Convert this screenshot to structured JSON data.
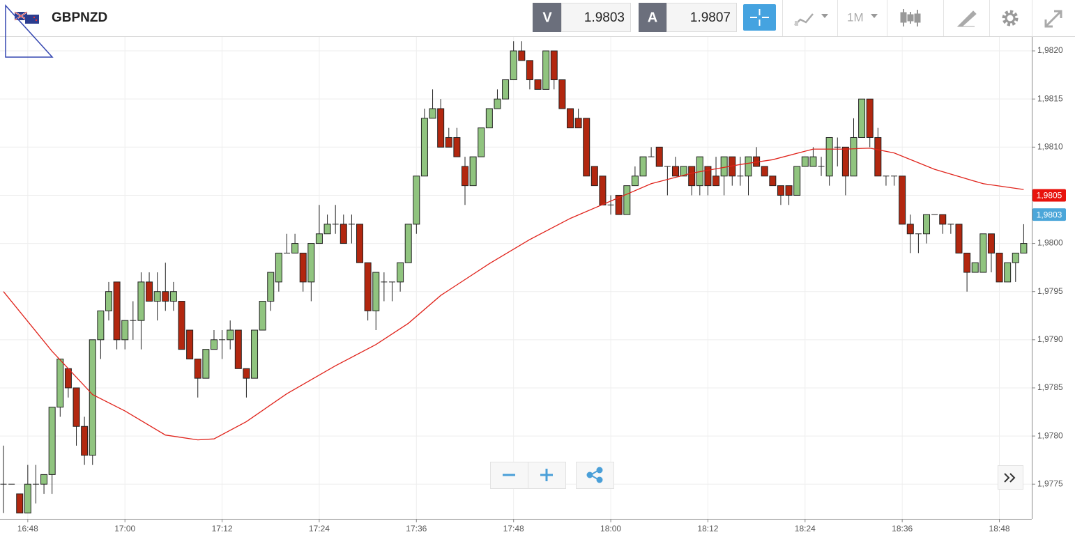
{
  "toolbar": {
    "symbol": "GBPNZD",
    "bid_label": "V",
    "bid": "1.9803",
    "ask_label": "A",
    "ask": "1.9807",
    "timeframe": "1M"
  },
  "chart_data": {
    "type": "candlestick",
    "x": [
      "16:45",
      "16:46",
      "16:47",
      "16:48",
      "16:49",
      "16:50",
      "16:51",
      "16:52",
      "16:53",
      "16:54",
      "16:55",
      "16:56",
      "16:57",
      "16:58",
      "16:59",
      "17:00",
      "17:01",
      "17:02",
      "17:03",
      "17:04",
      "17:05",
      "17:06",
      "17:07",
      "17:08",
      "17:09",
      "17:10",
      "17:11",
      "17:12",
      "17:13",
      "17:14",
      "17:15",
      "17:16",
      "17:17",
      "17:18",
      "17:19",
      "17:20",
      "17:21",
      "17:22",
      "17:23",
      "17:24",
      "17:25",
      "17:26",
      "17:27",
      "17:28",
      "17:29",
      "17:30",
      "17:31",
      "17:32",
      "17:33",
      "17:34",
      "17:35",
      "17:36",
      "17:37",
      "17:38",
      "17:39",
      "17:40",
      "17:41",
      "17:42",
      "17:43",
      "17:44",
      "17:45",
      "17:46",
      "17:47",
      "17:48",
      "17:49",
      "17:50",
      "17:51",
      "17:52",
      "17:53",
      "17:54",
      "17:55",
      "17:56",
      "17:57",
      "17:58",
      "17:59",
      "18:00",
      "18:01",
      "18:02",
      "18:03",
      "18:04",
      "18:05",
      "18:06",
      "18:07",
      "18:08",
      "18:09",
      "18:10",
      "18:11",
      "18:12",
      "18:13",
      "18:14",
      "18:15",
      "18:16",
      "18:17",
      "18:18",
      "18:19",
      "18:20",
      "18:21",
      "18:22",
      "18:23",
      "18:24",
      "18:25",
      "18:26",
      "18:27",
      "18:28",
      "18:29",
      "18:30",
      "18:31",
      "18:32",
      "18:33",
      "18:34",
      "18:35",
      "18:36",
      "18:37",
      "18:38",
      "18:39",
      "18:40",
      "18:41",
      "18:42",
      "18:43",
      "18:44",
      "18:45",
      "18:46",
      "18:47",
      "18:48",
      "18:49",
      "18:50",
      "18:51"
    ],
    "open": [
      1.9775,
      1.9775,
      1.9774,
      1.9772,
      1.9775,
      1.9775,
      1.9776,
      1.9783,
      1.9787,
      1.9785,
      1.9781,
      1.9778,
      1.979,
      1.9793,
      1.9796,
      1.979,
      1.9792,
      1.9792,
      1.9796,
      1.9794,
      1.9795,
      1.9794,
      1.9794,
      1.9791,
      1.9788,
      1.9786,
      1.9789,
      1.979,
      1.979,
      1.9791,
      1.9787,
      1.9786,
      1.9791,
      1.9794,
      1.9796,
      1.9799,
      1.9799,
      1.9799,
      1.9796,
      1.98,
      1.9801,
      1.9802,
      1.9802,
      1.9802,
      1.9802,
      1.9798,
      1.9793,
      1.9796,
      1.9796,
      1.9796,
      1.9798,
      1.9802,
      1.9807,
      1.9813,
      1.9814,
      1.9811,
      1.9811,
      1.9808,
      1.9806,
      1.9809,
      1.9812,
      1.9814,
      1.9815,
      1.9817,
      1.982,
      1.9819,
      1.9817,
      1.9816,
      1.982,
      1.9817,
      1.9814,
      1.9813,
      1.9813,
      1.9808,
      1.9807,
      1.9804,
      1.9805,
      1.9803,
      1.9806,
      1.9807,
      1.9809,
      1.981,
      1.9808,
      1.9808,
      1.9807,
      1.9808,
      1.9806,
      1.9808,
      1.9807,
      1.9807,
      1.9809,
      1.9807,
      1.9807,
      1.9809,
      1.9808,
      1.9807,
      1.9806,
      1.9806,
      1.9805,
      1.9808,
      1.9808,
      1.9808,
      1.9807,
      1.981,
      1.981,
      1.9807,
      1.9811,
      1.9815,
      1.9811,
      1.9807,
      1.9807,
      1.9807,
      1.9802,
      1.9801,
      1.9801,
      1.9803,
      1.9803,
      1.9802,
      1.9802,
      1.9799,
      1.9797,
      1.9797,
      1.9801,
      1.9799,
      1.9796,
      1.9798,
      1.9799
    ],
    "high": [
      1.9779,
      1.9775,
      1.9774,
      1.9777,
      1.9777,
      1.9776,
      1.9783,
      1.9788,
      1.9787,
      1.9785,
      1.9782,
      1.979,
      1.9793,
      1.9796,
      1.9796,
      1.9792,
      1.9794,
      1.9797,
      1.9797,
      1.9797,
      1.9798,
      1.9796,
      1.9794,
      1.9791,
      1.9788,
      1.9789,
      1.9791,
      1.9791,
      1.9792,
      1.9791,
      1.9787,
      1.9791,
      1.9794,
      1.9797,
      1.9799,
      1.9801,
      1.9801,
      1.9799,
      1.98,
      1.9804,
      1.9803,
      1.9804,
      1.9803,
      1.9803,
      1.9802,
      1.9798,
      1.9797,
      1.9797,
      1.9796,
      1.9798,
      1.9802,
      1.9807,
      1.9814,
      1.9816,
      1.9815,
      1.9812,
      1.9812,
      1.9809,
      1.9809,
      1.9812,
      1.9814,
      1.9816,
      1.9817,
      1.9821,
      1.9821,
      1.9819,
      1.9817,
      1.982,
      1.982,
      1.9817,
      1.9814,
      1.9814,
      1.9813,
      1.9808,
      1.9807,
      1.9805,
      1.9805,
      1.9806,
      1.9808,
      1.9809,
      1.981,
      1.981,
      1.9808,
      1.9809,
      1.9808,
      1.9808,
      1.9809,
      1.9808,
      1.9809,
      1.9809,
      1.9809,
      1.9809,
      1.9809,
      1.981,
      1.9808,
      1.9807,
      1.9806,
      1.9806,
      1.9808,
      1.9809,
      1.981,
      1.9809,
      1.9811,
      1.9811,
      1.981,
      1.9813,
      1.9815,
      1.9815,
      1.9812,
      1.9807,
      1.9807,
      1.9807,
      1.9803,
      1.9801,
      1.9803,
      1.9803,
      1.9803,
      1.9802,
      1.9802,
      1.9799,
      1.9798,
      1.9801,
      1.9801,
      1.9799,
      1.9798,
      1.9799,
      1.9802
    ],
    "low": [
      1.9772,
      1.9775,
      1.9772,
      1.9772,
      1.9773,
      1.9774,
      1.9774,
      1.9782,
      1.9784,
      1.9779,
      1.9777,
      1.9777,
      1.9788,
      1.9792,
      1.9789,
      1.9789,
      1.979,
      1.9789,
      1.9794,
      1.9792,
      1.9793,
      1.9793,
      1.9789,
      1.9788,
      1.9784,
      1.9786,
      1.9789,
      1.9788,
      1.9789,
      1.9787,
      1.9784,
      1.9786,
      1.9791,
      1.9793,
      1.9795,
      1.9799,
      1.9799,
      1.9795,
      1.9794,
      1.98,
      1.9801,
      1.9801,
      1.98,
      1.98,
      1.9798,
      1.9792,
      1.9791,
      1.9794,
      1.9794,
      1.9795,
      1.9798,
      1.9801,
      1.9807,
      1.9813,
      1.981,
      1.981,
      1.9809,
      1.9804,
      1.9806,
      1.9809,
      1.9812,
      1.9814,
      1.9815,
      1.9817,
      1.9819,
      1.9816,
      1.9816,
      1.9816,
      1.9816,
      1.9814,
      1.9812,
      1.9812,
      1.9807,
      1.9806,
      1.9804,
      1.9803,
      1.9803,
      1.9803,
      1.9806,
      1.9807,
      1.9809,
      1.9808,
      1.9805,
      1.9807,
      1.9807,
      1.9805,
      1.9805,
      1.9805,
      1.9806,
      1.9805,
      1.9806,
      1.9806,
      1.9805,
      1.9808,
      1.9807,
      1.9806,
      1.9804,
      1.9804,
      1.9805,
      1.9808,
      1.9808,
      1.9807,
      1.9806,
      1.9808,
      1.9805,
      1.9807,
      1.9811,
      1.981,
      1.9807,
      1.9806,
      1.9806,
      1.9802,
      1.9799,
      1.9799,
      1.98,
      1.9803,
      1.9801,
      1.9801,
      1.9799,
      1.9795,
      1.9797,
      1.9797,
      1.9797,
      1.9796,
      1.9796,
      1.9796,
      1.9799
    ],
    "close": [
      1.9775,
      1.9775,
      1.9772,
      1.9775,
      1.9775,
      1.9776,
      1.9783,
      1.9788,
      1.9785,
      1.9781,
      1.9778,
      1.979,
      1.9793,
      1.9795,
      1.979,
      1.9792,
      1.9792,
      1.9796,
      1.9794,
      1.9795,
      1.9794,
      1.9795,
      1.9789,
      1.9788,
      1.9786,
      1.9789,
      1.979,
      1.979,
      1.9791,
      1.9787,
      1.9786,
      1.9791,
      1.9794,
      1.9797,
      1.9799,
      1.9799,
      1.98,
      1.9796,
      1.98,
      1.9801,
      1.9802,
      1.9802,
      1.98,
      1.9802,
      1.9798,
      1.9793,
      1.9797,
      1.9796,
      1.9796,
      1.9798,
      1.9802,
      1.9807,
      1.9813,
      1.9814,
      1.981,
      1.981,
      1.9809,
      1.9806,
      1.9809,
      1.9812,
      1.9814,
      1.9815,
      1.9817,
      1.982,
      1.9819,
      1.9817,
      1.9816,
      1.982,
      1.9817,
      1.9814,
      1.9812,
      1.9812,
      1.9807,
      1.9806,
      1.9804,
      1.9804,
      1.9803,
      1.9806,
      1.9807,
      1.9809,
      1.9809,
      1.9808,
      1.9808,
      1.9807,
      1.9808,
      1.9806,
      1.9809,
      1.9806,
      1.9806,
      1.9809,
      1.9807,
      1.9807,
      1.9809,
      1.9808,
      1.9807,
      1.9806,
      1.9805,
      1.9805,
      1.9808,
      1.9809,
      1.9809,
      1.9808,
      1.9811,
      1.981,
      1.9807,
      1.9811,
      1.9815,
      1.9811,
      1.9807,
      1.9807,
      1.9807,
      1.9802,
      1.9801,
      1.9801,
      1.9803,
      1.9803,
      1.9802,
      1.9802,
      1.9799,
      1.9797,
      1.9798,
      1.9801,
      1.9799,
      1.9796,
      1.9798,
      1.9799,
      1.98
    ],
    "up_color": "#90c47f",
    "down_color": "#b2270f",
    "moving_average": {
      "color": "#e0231b",
      "x": [
        "16:45",
        "16:51",
        "16:56",
        "17:00",
        "17:05",
        "17:09",
        "17:11",
        "17:15",
        "17:20",
        "17:26",
        "17:31",
        "17:35",
        "17:39",
        "17:41",
        "17:45",
        "17:50",
        "17:55",
        "18:00",
        "18:05",
        "18:10",
        "18:16",
        "18:20",
        "18:25",
        "18:29",
        "18:32",
        "18:35",
        "18:40",
        "18:46",
        "18:51"
      ],
      "values": [
        1.9795,
        1.97888,
        1.97843,
        1.97826,
        1.97801,
        1.97796,
        1.97797,
        1.97815,
        1.97844,
        1.97873,
        1.97895,
        1.97917,
        1.97946,
        1.97957,
        1.97979,
        1.98004,
        1.98026,
        1.98044,
        1.98062,
        1.98073,
        1.98082,
        1.98087,
        1.98098,
        1.98098,
        1.98099,
        1.98094,
        1.98077,
        1.98062,
        1.98056
      ]
    },
    "price_labels": [
      {
        "value": 1.9805,
        "label": "1,9805",
        "color": "#e8120c"
      },
      {
        "value": 1.9803,
        "label": "1,9803",
        "color": "#4ba6d9"
      }
    ],
    "xlim": [
      "16:45",
      "18:52"
    ],
    "ylim": [
      1.97714,
      1.982145
    ],
    "xticks": [
      "16:48",
      "17:00",
      "17:12",
      "17:24",
      "17:36",
      "17:48",
      "18:00",
      "18:12",
      "18:24",
      "18:36",
      "18:48"
    ],
    "yticks": [
      {
        "value": 1.9775,
        "label": "1,9775"
      },
      {
        "value": 1.978,
        "label": "1,9780"
      },
      {
        "value": 1.9785,
        "label": "1,9785"
      },
      {
        "value": 1.979,
        "label": "1,9790"
      },
      {
        "value": 1.9795,
        "label": "1,9795"
      },
      {
        "value": 1.98,
        "label": "1,9800"
      },
      {
        "value": 1.9805,
        "label": "1,9805"
      },
      {
        "value": 1.981,
        "label": "1,9810"
      },
      {
        "value": 1.9815,
        "label": "1,9815"
      },
      {
        "value": 1.982,
        "label": "1,9820"
      }
    ],
    "grid": true
  }
}
